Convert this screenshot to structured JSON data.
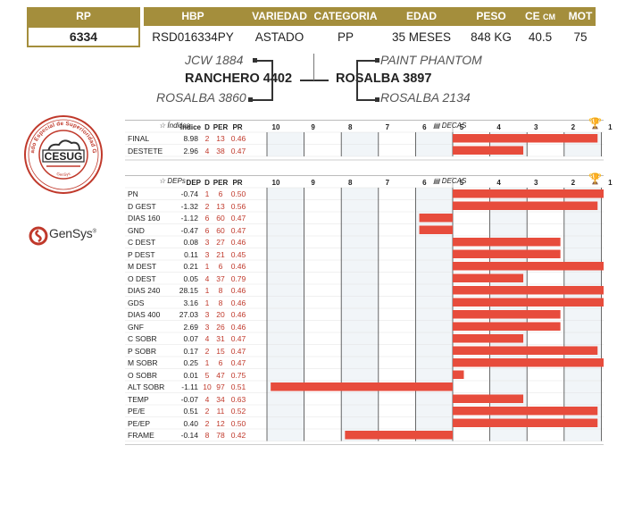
{
  "header": {
    "rp_label": "RP",
    "rp_value": "6334",
    "columns": [
      {
        "label": "HBP",
        "value": "RSD016334PY"
      },
      {
        "label": "VARIEDAD",
        "value": "ASTADO"
      },
      {
        "label": "CATEGORIA",
        "value": "PP"
      },
      {
        "label": "EDAD",
        "value": "35 MESES"
      },
      {
        "label": "PESO",
        "value": "848 KG"
      },
      {
        "label": "CE",
        "label_unit": "CM",
        "value": "40.5"
      },
      {
        "label": "MOT",
        "value": "75"
      }
    ]
  },
  "pedigree": {
    "sire_sire": "JCW 1884",
    "sire": "RANCHERO 4402",
    "sire_dam": "ROSALBA 3860",
    "dam_sire": "PAINT PHANTOM",
    "dam": "ROSALBA 3897",
    "dam_dam": "ROSALBA 2134"
  },
  "logos": {
    "seal_text": "CESUG",
    "seal_ring_text": "Certificado Especial de Superioridad Genética",
    "seal_bottom_text": "GenSys",
    "gensys_name": "GenSys",
    "gensys_mark": "®"
  },
  "colors": {
    "gold": "#a48e3c",
    "bar_red": "#e74c3c",
    "value_red": "#c0392b"
  },
  "chart_data": [
    {
      "type": "bar",
      "section": "Índices",
      "section_icon": "star-icon",
      "right_label": "DECAS",
      "right_icon": "chart-icon",
      "corner_icon": "trophy-icon",
      "col_headers": [
        "Índice",
        "D",
        "PER",
        "PR"
      ],
      "decas_ticks": [
        "10",
        "9",
        "8",
        "7",
        "6",
        "5",
        "4",
        "3",
        "2",
        "1"
      ],
      "rows": [
        {
          "name": "FINAL",
          "value": "8.98",
          "d": "2",
          "per": "13",
          "pr": "0.46",
          "deca": 2
        },
        {
          "name": "DESTETE",
          "value": "2.96",
          "d": "4",
          "per": "38",
          "pr": "0.47",
          "deca": 4
        }
      ]
    },
    {
      "type": "bar",
      "section": "DEPs",
      "section_icon": "tag-icon",
      "right_label": "DECAS",
      "right_icon": "chart-icon",
      "corner_icon": "trophy-icon",
      "col_headers": [
        "DEP",
        "D",
        "PER",
        "PR"
      ],
      "decas_ticks": [
        "10",
        "9",
        "8",
        "7",
        "6",
        "5",
        "4",
        "3",
        "2",
        "1"
      ],
      "rows": [
        {
          "name": "PN",
          "value": "-0.74",
          "d": "1",
          "per": "6",
          "pr": "0.50",
          "deca": 1
        },
        {
          "name": "D GEST",
          "value": "-1.32",
          "d": "2",
          "per": "13",
          "pr": "0.56",
          "deca": 2
        },
        {
          "name": "DIAS 160",
          "value": "-1.12",
          "d": "6",
          "per": "60",
          "pr": "0.47",
          "deca": 6
        },
        {
          "name": "GND",
          "value": "-0.47",
          "d": "6",
          "per": "60",
          "pr": "0.47",
          "deca": 6
        },
        {
          "name": "C DEST",
          "value": "0.08",
          "d": "3",
          "per": "27",
          "pr": "0.46",
          "deca": 3
        },
        {
          "name": "P DEST",
          "value": "0.11",
          "d": "3",
          "per": "21",
          "pr": "0.45",
          "deca": 3
        },
        {
          "name": "M DEST",
          "value": "0.21",
          "d": "1",
          "per": "6",
          "pr": "0.46",
          "deca": 1
        },
        {
          "name": "O DEST",
          "value": "0.05",
          "d": "4",
          "per": "37",
          "pr": "0.79",
          "deca": 4
        },
        {
          "name": "DIAS 240",
          "value": "28.15",
          "d": "1",
          "per": "8",
          "pr": "0.46",
          "deca": 1
        },
        {
          "name": "GDS",
          "value": "3.16",
          "d": "1",
          "per": "8",
          "pr": "0.46",
          "deca": 1
        },
        {
          "name": "DIAS 400",
          "value": "27.03",
          "d": "3",
          "per": "20",
          "pr": "0.46",
          "deca": 3
        },
        {
          "name": "GNF",
          "value": "2.69",
          "d": "3",
          "per": "26",
          "pr": "0.46",
          "deca": 3
        },
        {
          "name": "C SOBR",
          "value": "0.07",
          "d": "4",
          "per": "31",
          "pr": "0.47",
          "deca": 4
        },
        {
          "name": "P SOBR",
          "value": "0.17",
          "d": "2",
          "per": "15",
          "pr": "0.47",
          "deca": 2
        },
        {
          "name": "M SOBR",
          "value": "0.25",
          "d": "1",
          "per": "6",
          "pr": "0.47",
          "deca": 1
        },
        {
          "name": "O SOBR",
          "value": "0.01",
          "d": "5",
          "per": "47",
          "pr": "0.75",
          "deca": 5
        },
        {
          "name": "ALT SOBR",
          "value": "-1.11",
          "d": "10",
          "per": "97",
          "pr": "0.51",
          "deca": 10
        },
        {
          "name": "TEMP",
          "value": "-0.07",
          "d": "4",
          "per": "34",
          "pr": "0.63",
          "deca": 4
        },
        {
          "name": "PE/E",
          "value": "0.51",
          "d": "2",
          "per": "11",
          "pr": "0.52",
          "deca": 2
        },
        {
          "name": "PE/EP",
          "value": "0.40",
          "d": "2",
          "per": "12",
          "pr": "0.50",
          "deca": 2
        },
        {
          "name": "FRAME",
          "value": "-0.14",
          "d": "8",
          "per": "78",
          "pr": "0.42",
          "deca": 8
        }
      ]
    }
  ]
}
